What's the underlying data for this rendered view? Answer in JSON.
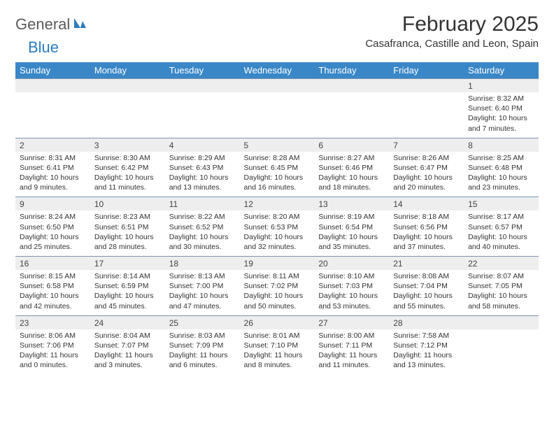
{
  "logo": {
    "part1": "General",
    "part2": "Blue"
  },
  "title": "February 2025",
  "location": "Casafranca, Castille and Leon, Spain",
  "colors": {
    "header_bg": "#3a87c7",
    "header_text": "#ffffff",
    "daynum_bg": "#eeeeee",
    "border": "#7a94b0",
    "logo_gray": "#5a5a5a",
    "logo_blue": "#2a7bbf"
  },
  "weekdays": [
    "Sunday",
    "Monday",
    "Tuesday",
    "Wednesday",
    "Thursday",
    "Friday",
    "Saturday"
  ],
  "weeks": [
    {
      "nums": [
        "",
        "",
        "",
        "",
        "",
        "",
        "1"
      ],
      "cells": [
        null,
        null,
        null,
        null,
        null,
        null,
        {
          "sunrise": "Sunrise: 8:32 AM",
          "sunset": "Sunset: 6:40 PM",
          "daylight": "Daylight: 10 hours and 7 minutes."
        }
      ]
    },
    {
      "nums": [
        "2",
        "3",
        "4",
        "5",
        "6",
        "7",
        "8"
      ],
      "cells": [
        {
          "sunrise": "Sunrise: 8:31 AM",
          "sunset": "Sunset: 6:41 PM",
          "daylight": "Daylight: 10 hours and 9 minutes."
        },
        {
          "sunrise": "Sunrise: 8:30 AM",
          "sunset": "Sunset: 6:42 PM",
          "daylight": "Daylight: 10 hours and 11 minutes."
        },
        {
          "sunrise": "Sunrise: 8:29 AM",
          "sunset": "Sunset: 6:43 PM",
          "daylight": "Daylight: 10 hours and 13 minutes."
        },
        {
          "sunrise": "Sunrise: 8:28 AM",
          "sunset": "Sunset: 6:45 PM",
          "daylight": "Daylight: 10 hours and 16 minutes."
        },
        {
          "sunrise": "Sunrise: 8:27 AM",
          "sunset": "Sunset: 6:46 PM",
          "daylight": "Daylight: 10 hours and 18 minutes."
        },
        {
          "sunrise": "Sunrise: 8:26 AM",
          "sunset": "Sunset: 6:47 PM",
          "daylight": "Daylight: 10 hours and 20 minutes."
        },
        {
          "sunrise": "Sunrise: 8:25 AM",
          "sunset": "Sunset: 6:48 PM",
          "daylight": "Daylight: 10 hours and 23 minutes."
        }
      ]
    },
    {
      "nums": [
        "9",
        "10",
        "11",
        "12",
        "13",
        "14",
        "15"
      ],
      "cells": [
        {
          "sunrise": "Sunrise: 8:24 AM",
          "sunset": "Sunset: 6:50 PM",
          "daylight": "Daylight: 10 hours and 25 minutes."
        },
        {
          "sunrise": "Sunrise: 8:23 AM",
          "sunset": "Sunset: 6:51 PM",
          "daylight": "Daylight: 10 hours and 28 minutes."
        },
        {
          "sunrise": "Sunrise: 8:22 AM",
          "sunset": "Sunset: 6:52 PM",
          "daylight": "Daylight: 10 hours and 30 minutes."
        },
        {
          "sunrise": "Sunrise: 8:20 AM",
          "sunset": "Sunset: 6:53 PM",
          "daylight": "Daylight: 10 hours and 32 minutes."
        },
        {
          "sunrise": "Sunrise: 8:19 AM",
          "sunset": "Sunset: 6:54 PM",
          "daylight": "Daylight: 10 hours and 35 minutes."
        },
        {
          "sunrise": "Sunrise: 8:18 AM",
          "sunset": "Sunset: 6:56 PM",
          "daylight": "Daylight: 10 hours and 37 minutes."
        },
        {
          "sunrise": "Sunrise: 8:17 AM",
          "sunset": "Sunset: 6:57 PM",
          "daylight": "Daylight: 10 hours and 40 minutes."
        }
      ]
    },
    {
      "nums": [
        "16",
        "17",
        "18",
        "19",
        "20",
        "21",
        "22"
      ],
      "cells": [
        {
          "sunrise": "Sunrise: 8:15 AM",
          "sunset": "Sunset: 6:58 PM",
          "daylight": "Daylight: 10 hours and 42 minutes."
        },
        {
          "sunrise": "Sunrise: 8:14 AM",
          "sunset": "Sunset: 6:59 PM",
          "daylight": "Daylight: 10 hours and 45 minutes."
        },
        {
          "sunrise": "Sunrise: 8:13 AM",
          "sunset": "Sunset: 7:00 PM",
          "daylight": "Daylight: 10 hours and 47 minutes."
        },
        {
          "sunrise": "Sunrise: 8:11 AM",
          "sunset": "Sunset: 7:02 PM",
          "daylight": "Daylight: 10 hours and 50 minutes."
        },
        {
          "sunrise": "Sunrise: 8:10 AM",
          "sunset": "Sunset: 7:03 PM",
          "daylight": "Daylight: 10 hours and 53 minutes."
        },
        {
          "sunrise": "Sunrise: 8:08 AM",
          "sunset": "Sunset: 7:04 PM",
          "daylight": "Daylight: 10 hours and 55 minutes."
        },
        {
          "sunrise": "Sunrise: 8:07 AM",
          "sunset": "Sunset: 7:05 PM",
          "daylight": "Daylight: 10 hours and 58 minutes."
        }
      ]
    },
    {
      "nums": [
        "23",
        "24",
        "25",
        "26",
        "27",
        "28",
        ""
      ],
      "cells": [
        {
          "sunrise": "Sunrise: 8:06 AM",
          "sunset": "Sunset: 7:06 PM",
          "daylight": "Daylight: 11 hours and 0 minutes."
        },
        {
          "sunrise": "Sunrise: 8:04 AM",
          "sunset": "Sunset: 7:07 PM",
          "daylight": "Daylight: 11 hours and 3 minutes."
        },
        {
          "sunrise": "Sunrise: 8:03 AM",
          "sunset": "Sunset: 7:09 PM",
          "daylight": "Daylight: 11 hours and 6 minutes."
        },
        {
          "sunrise": "Sunrise: 8:01 AM",
          "sunset": "Sunset: 7:10 PM",
          "daylight": "Daylight: 11 hours and 8 minutes."
        },
        {
          "sunrise": "Sunrise: 8:00 AM",
          "sunset": "Sunset: 7:11 PM",
          "daylight": "Daylight: 11 hours and 11 minutes."
        },
        {
          "sunrise": "Sunrise: 7:58 AM",
          "sunset": "Sunset: 7:12 PM",
          "daylight": "Daylight: 11 hours and 13 minutes."
        },
        null
      ]
    }
  ]
}
